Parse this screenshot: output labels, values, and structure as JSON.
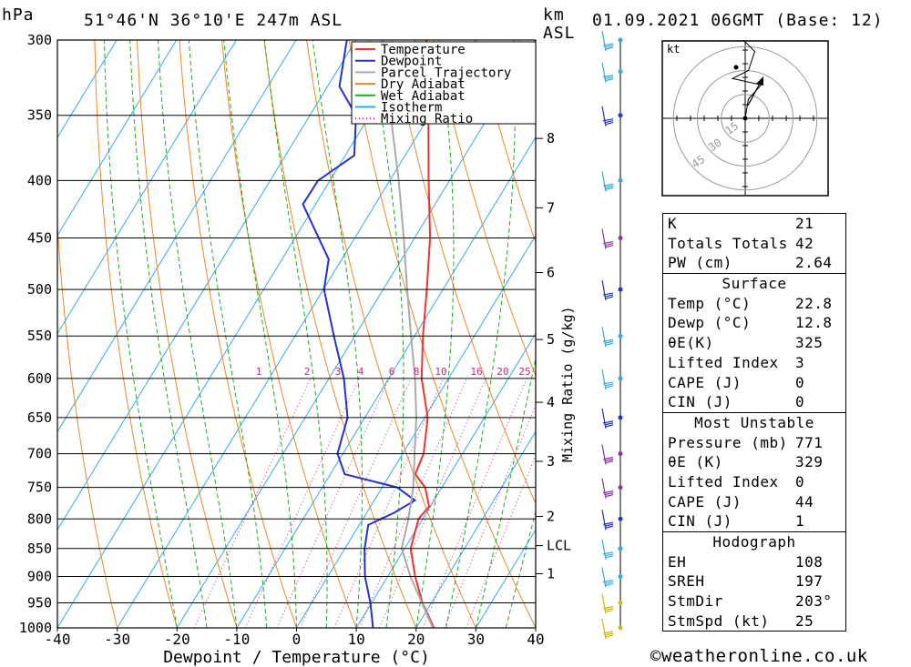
{
  "header": {
    "pressure_unit": "hPa",
    "location": "51°46'N  36°10'E  247m  ASL",
    "km_label": "km",
    "asl_label": "ASL",
    "datetime": "01.09.2021  06GMT  (Base: 12)"
  },
  "colors": {
    "temperature": "#ee3333",
    "dewpoint": "#2233cc",
    "parcel": "#aaaaaa",
    "dry_adiabat": "#e88a2a",
    "wet_adiabat": "#22aa22",
    "isotherm": "#33aaee",
    "mixing_ratio": "#cc2288"
  },
  "chart_data": {
    "type": "line",
    "title": "51°46'N  36°10'E  247m  ASL",
    "xlabel": "Dewpoint / Temperature (°C)",
    "ylabel": "hPa",
    "secondary_ylabel": "Mixing Ratio (g/kg)",
    "xlim": [
      -40,
      40
    ],
    "ylim": [
      1000,
      300
    ],
    "x_ticks": [
      "-40",
      "-30",
      "-20",
      "-10",
      "0",
      "10",
      "20",
      "30",
      "40"
    ],
    "pressure_levels": [
      300,
      350,
      400,
      450,
      500,
      550,
      600,
      650,
      700,
      750,
      800,
      850,
      900,
      950,
      1000
    ],
    "height_ticks": [
      {
        "label": "8",
        "p": 367
      },
      {
        "label": "7",
        "p": 423
      },
      {
        "label": "6",
        "p": 483
      },
      {
        "label": "5",
        "p": 554
      },
      {
        "label": "4",
        "p": 630
      },
      {
        "label": "3",
        "p": 711
      },
      {
        "label": "2",
        "p": 796
      },
      {
        "label": "LCL",
        "p": 845
      },
      {
        "label": "1",
        "p": 895
      }
    ],
    "mixing_ratio_labels": [
      "1",
      "2",
      "3",
      "4",
      "6",
      "8",
      "10",
      "16",
      "20",
      "25"
    ],
    "mixing_ratio_values": [
      1,
      2,
      3,
      4,
      6,
      8,
      10,
      16,
      20,
      25
    ],
    "legend": [
      "Temperature",
      "Dewpoint",
      "Parcel Trajectory",
      "Dry Adiabat",
      "Wet Adiabat",
      "Isotherm",
      "Mixing Ratio"
    ],
    "legend_position": "top-right",
    "series": [
      {
        "name": "Temperature",
        "points": [
          {
            "p": 1000,
            "t": 23
          },
          {
            "p": 950,
            "t": 18.5
          },
          {
            "p": 900,
            "t": 14.6
          },
          {
            "p": 850,
            "t": 11
          },
          {
            "p": 800,
            "t": 9.3
          },
          {
            "p": 780,
            "t": 9.8
          },
          {
            "p": 750,
            "t": 7.2
          },
          {
            "p": 730,
            "t": 4.2
          },
          {
            "p": 700,
            "t": 3.5
          },
          {
            "p": 650,
            "t": 0.5
          },
          {
            "p": 600,
            "t": -4.5
          },
          {
            "p": 550,
            "t": -8.6
          },
          {
            "p": 500,
            "t": -12.7
          },
          {
            "p": 450,
            "t": -17.4
          },
          {
            "p": 400,
            "t": -23.5
          },
          {
            "p": 350,
            "t": -30.2
          },
          {
            "p": 300,
            "t": -38.2
          }
        ]
      },
      {
        "name": "Dewpoint",
        "points": [
          {
            "p": 1000,
            "t": 12.8
          },
          {
            "p": 950,
            "t": 9.8
          },
          {
            "p": 900,
            "t": 6.2
          },
          {
            "p": 850,
            "t": 3.3
          },
          {
            "p": 810,
            "t": 1.5
          },
          {
            "p": 790,
            "t": 4.6
          },
          {
            "p": 770,
            "t": 6.8
          },
          {
            "p": 750,
            "t": 2.5
          },
          {
            "p": 730,
            "t": -7.6
          },
          {
            "p": 700,
            "t": -10.9
          },
          {
            "p": 650,
            "t": -12.9
          },
          {
            "p": 600,
            "t": -17.5
          },
          {
            "p": 550,
            "t": -23.5
          },
          {
            "p": 500,
            "t": -29.9
          },
          {
            "p": 470,
            "t": -32.2
          },
          {
            "p": 420,
            "t": -42.1
          },
          {
            "p": 400,
            "t": -42.0
          },
          {
            "p": 380,
            "t": -38.5
          },
          {
            "p": 350,
            "t": -42.3
          },
          {
            "p": 330,
            "t": -48.0
          },
          {
            "p": 300,
            "t": -51.5
          }
        ]
      },
      {
        "name": "Parcel Trajectory",
        "points": [
          {
            "p": 1000,
            "t": 22.8
          },
          {
            "p": 900,
            "t": 13.8
          },
          {
            "p": 850,
            "t": 9.5
          },
          {
            "p": 800,
            "t": 7.6
          },
          {
            "p": 750,
            "t": 5.2
          },
          {
            "p": 700,
            "t": 2.0
          },
          {
            "p": 650,
            "t": -1.4
          },
          {
            "p": 600,
            "t": -5.6
          },
          {
            "p": 550,
            "t": -10.6
          },
          {
            "p": 500,
            "t": -16.0
          },
          {
            "p": 450,
            "t": -21.8
          },
          {
            "p": 400,
            "t": -28.5
          },
          {
            "p": 350,
            "t": -36.5
          },
          {
            "p": 300,
            "t": -45.5
          }
        ]
      }
    ],
    "hodograph": {
      "unit_label": "kt",
      "ring_labels": [
        "15",
        "30",
        "45"
      ],
      "ring_speeds_kt": [
        15,
        30,
        45
      ],
      "trace_kt": [
        [
          0,
          0
        ],
        [
          2,
          12
        ],
        [
          10,
          21
        ],
        [
          -8,
          25
        ],
        [
          2,
          30
        ],
        [
          6,
          42
        ],
        [
          -2,
          50
        ]
      ]
    }
  },
  "indices": [
    {
      "label": "K",
      "value": "21"
    },
    {
      "label": "Totals Totals",
      "value": "42"
    },
    {
      "label": "PW (cm)",
      "value": "2.64"
    }
  ],
  "surface": {
    "title": "Surface",
    "rows": [
      {
        "label": "Temp (°C)",
        "value": "22.8"
      },
      {
        "label": "Dewp (°C)",
        "value": "12.8"
      },
      {
        "label": "θE(K)",
        "value": "325"
      },
      {
        "label": "Lifted Index",
        "value": "3"
      },
      {
        "label": "CAPE (J)",
        "value": "0"
      },
      {
        "label": "CIN (J)",
        "value": "0"
      }
    ]
  },
  "most_unstable": {
    "title": "Most Unstable",
    "rows": [
      {
        "label": "Pressure (mb)",
        "value": "771"
      },
      {
        "label": "θE (K)",
        "value": "329"
      },
      {
        "label": "Lifted Index",
        "value": "0"
      },
      {
        "label": "CAPE (J)",
        "value": "44"
      },
      {
        "label": "CIN (J)",
        "value": "1"
      }
    ]
  },
  "hodograph_box": {
    "title": "Hodograph",
    "rows": [
      {
        "label": "EH",
        "value": "108"
      },
      {
        "label": "SREH",
        "value": "197"
      },
      {
        "label": "StmDir",
        "value": "203°"
      },
      {
        "label": "StmSpd (kt)",
        "value": "25"
      }
    ]
  },
  "wind_barb_colors": [
    "#33aadd",
    "#8833aa",
    "#2233cc",
    "#22aadd",
    "#ccbb11"
  ],
  "footer": {
    "copyright": "weatheronline.co.uk"
  }
}
